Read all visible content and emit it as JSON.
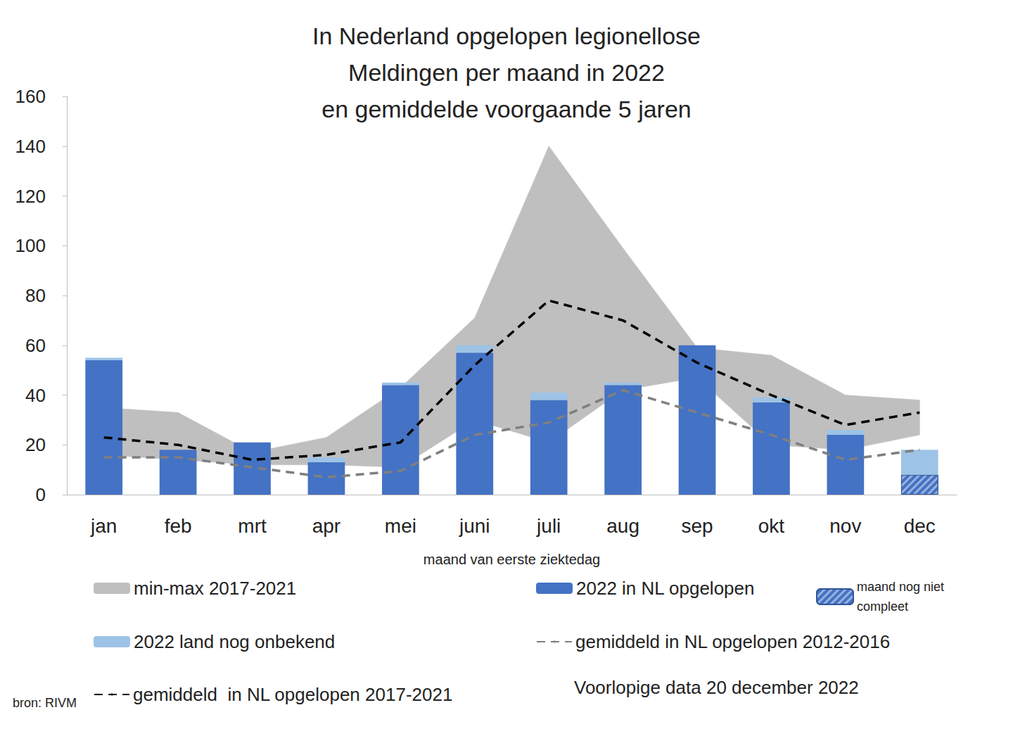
{
  "chart_data": {
    "type": "bar",
    "title": "In Nederland opgelopen legionellose\nMeldingen per maand in 2022\nen gemiddelde voorgaande 5 jaren",
    "x_label": "maand van eerste ziektedag",
    "categories": [
      "jan",
      "feb",
      "mrt",
      "apr",
      "mei",
      "juni",
      "juli",
      "aug",
      "sep",
      "okt",
      "nov",
      "dec"
    ],
    "ylim": [
      0,
      160
    ],
    "yticks": [
      0,
      20,
      40,
      60,
      80,
      100,
      120,
      140,
      160
    ],
    "grid": false,
    "stacked": true,
    "series": [
      {
        "name": "min-max 2017-2021",
        "type": "band",
        "color": "#bfbfbf",
        "min": [
          16,
          14,
          12,
          12,
          11,
          30,
          21,
          42,
          47,
          20,
          18,
          24
        ],
        "max": [
          35,
          33,
          17,
          23,
          43,
          71,
          140,
          99,
          59,
          56,
          40,
          38
        ]
      },
      {
        "name": "2022 in NL opgelopen",
        "type": "bar",
        "color": "#4472c4",
        "values": [
          54,
          18,
          21,
          13,
          44,
          57,
          38,
          44,
          60,
          37,
          24,
          null
        ]
      },
      {
        "name": "maand nog niet compleet",
        "type": "bar",
        "color": "#4472c4",
        "values": [
          null,
          null,
          null,
          null,
          null,
          null,
          null,
          null,
          null,
          null,
          null,
          8
        ]
      },
      {
        "name": "2022 land nog onbekend",
        "type": "bar",
        "color": "#9dc3e6",
        "values": [
          1,
          0,
          0,
          2,
          1,
          3,
          3,
          1,
          0,
          2,
          2,
          10
        ]
      },
      {
        "name": "gemiddeld in NL opgelopen 2012-2016",
        "type": "line",
        "color": "#7f7f7f",
        "line_style": "dashed",
        "values": [
          15,
          15,
          11,
          7,
          9.5,
          24,
          29,
          42,
          33,
          24,
          14,
          18
        ]
      },
      {
        "name": "gemiddeld  in NL opgelopen 2017-2021",
        "type": "line",
        "color": "#000000",
        "line_style": "dashed",
        "values": [
          23,
          20,
          14,
          16,
          21,
          52,
          78,
          70,
          53,
          40,
          28,
          33
        ]
      }
    ],
    "annotations": [
      "Voorlopige data 20 december 2022",
      "bron: RIVM"
    ]
  }
}
